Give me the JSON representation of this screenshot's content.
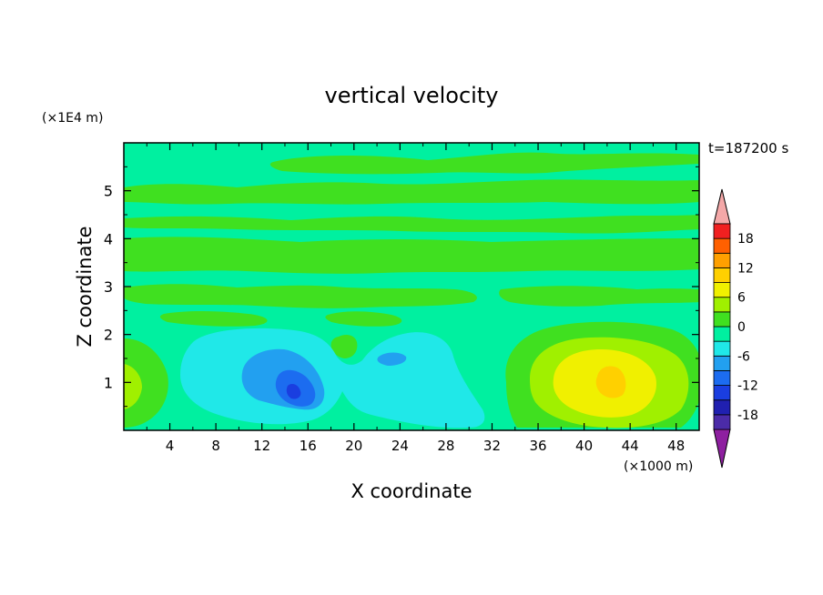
{
  "chart_data": {
    "type": "heatmap",
    "title": "vertical velocity",
    "xlabel": "X coordinate",
    "ylabel": "Z coordinate",
    "x_unit_label": "(×1000 m)",
    "y_unit_label": "(×1E4 m)",
    "time_label": "t=187200 s",
    "xlim": [
      0,
      50
    ],
    "ylim": [
      0,
      6
    ],
    "x_ticks": [
      4,
      8,
      12,
      16,
      20,
      24,
      28,
      32,
      36,
      40,
      44,
      48
    ],
    "y_ticks": [
      1,
      2,
      3,
      4,
      5
    ],
    "colorbar": {
      "levels": [
        -21,
        -18,
        -15,
        -12,
        -9,
        -6,
        -3,
        0,
        3,
        6,
        9,
        12,
        15,
        18,
        21
      ],
      "tick_labels": [
        18,
        12,
        6,
        0,
        -6,
        -12,
        -18
      ],
      "colors": [
        "#8e1fa0",
        "#4b2ba8",
        "#2020b0",
        "#1a3ee0",
        "#1c6cf0",
        "#22a0f0",
        "#20e8e8",
        "#00f0a0",
        "#40e020",
        "#a0f000",
        "#f0f000",
        "#ffd000",
        "#ffa000",
        "#ff6000",
        "#f02020",
        "#f4a8a8"
      ]
    },
    "features": [
      {
        "kind": "updraft",
        "x": 42,
        "z": 1.05,
        "peak": 11
      },
      {
        "kind": "downdraft",
        "x": 15,
        "z": 0.85,
        "peak": -13
      },
      {
        "kind": "downdraft",
        "x": 23.5,
        "z": 1.45,
        "peak": -8
      },
      {
        "kind": "updraft",
        "x": 0.5,
        "z": 0.95,
        "peak": 4
      }
    ]
  }
}
